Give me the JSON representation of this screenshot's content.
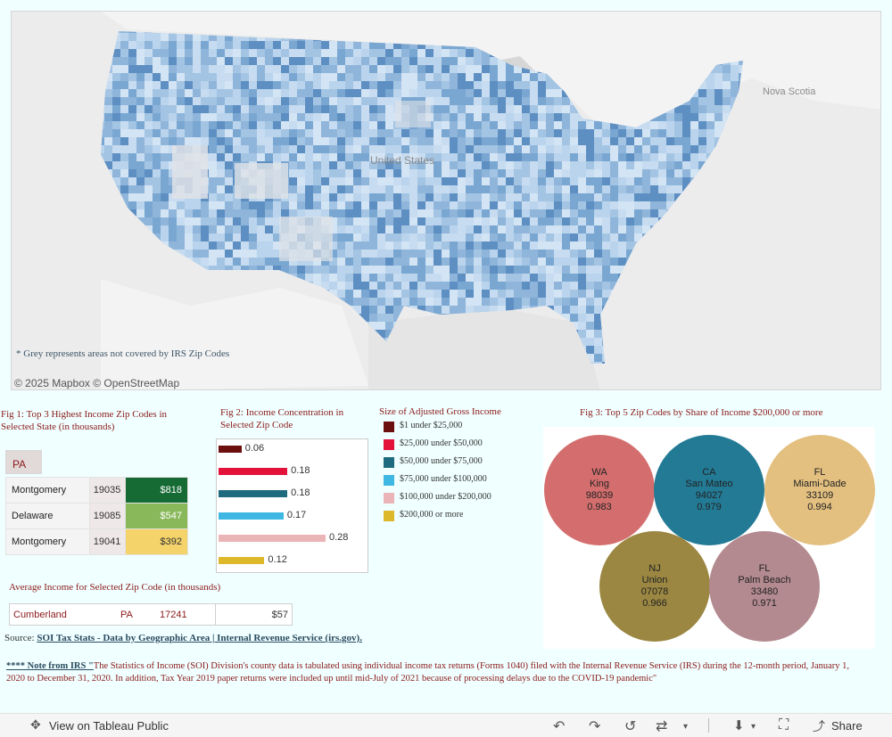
{
  "map": {
    "note": "* Grey represents areas  not covered by IRS Zip Codes",
    "attribution": "© 2025 Mapbox  © OpenStreetMap",
    "labels": [
      "Nova Scotia",
      "United States"
    ]
  },
  "fig1": {
    "title": "Fig 1: Top 3 Highest Income Zip Codes in Selected State (in thousands)",
    "state": "PA",
    "rows": [
      {
        "county": "Montgomery",
        "zip": "19035",
        "value": "$818",
        "color": "#166b34"
      },
      {
        "county": "Delaware",
        "zip": "19085",
        "value": "$547",
        "color": "#88b85a"
      },
      {
        "county": "Montgomery",
        "zip": "19041",
        "value": "$392",
        "color": "#f4d36a"
      }
    ]
  },
  "fig2": {
    "title": "Fig 2: Income Concentration in Selected Zip Code",
    "chart_data": {
      "type": "bar",
      "orientation": "horizontal",
      "categories": [
        "$1 under $25,000",
        "$25,000 under $50,000",
        "$50,000 under $75,000",
        "$75,000 under $100,000",
        "$100,000 under $200,000",
        "$200,000 or more"
      ],
      "values": [
        0.06,
        0.18,
        0.18,
        0.17,
        0.28,
        0.12
      ],
      "value_labels": [
        "0.06",
        "0.18",
        "0.18",
        "0.17",
        "0.28",
        "0.12"
      ],
      "xlim": [
        0,
        0.35
      ],
      "colors": [
        "#6b0f0f",
        "#e2123a",
        "#1e6a7e",
        "#3fb7e3",
        "#ebb4b6",
        "#ddb82a"
      ]
    }
  },
  "legend": {
    "title": "Size of Adjusted Gross Income",
    "items": [
      {
        "label": "$1 under $25,000",
        "color": "#6b0f0f"
      },
      {
        "label": "$25,000 under $50,000",
        "color": "#e2123a"
      },
      {
        "label": "$50,000 under $75,000",
        "color": "#1e6a7e"
      },
      {
        "label": "$75,000 under $100,000",
        "color": "#3fb7e3"
      },
      {
        "label": "$100,000 under $200,000",
        "color": "#ebb4b6"
      },
      {
        "label": "$200,000 or more",
        "color": "#ddb82a"
      }
    ]
  },
  "fig3": {
    "title": "Fig 3: Top 5  Zip Codes by Share of Income $200,000 or more",
    "bubbles": [
      {
        "state": "WA",
        "county": "King",
        "zip": "98039",
        "share": "0.983",
        "color": "#d46e6e"
      },
      {
        "state": "CA",
        "county": "San Mateo",
        "zip": "94027",
        "share": "0.979",
        "color": "#237a95"
      },
      {
        "state": "FL",
        "county": "Miami-Dade",
        "zip": "33109",
        "share": "0.994",
        "color": "#e3c080"
      },
      {
        "state": "NJ",
        "county": "Union",
        "zip": "07078",
        "share": "0.966",
        "color": "#9b8742"
      },
      {
        "state": "FL",
        "county": "Palm Beach",
        "zip": "33480",
        "share": "0.971",
        "color": "#b38a8f"
      }
    ]
  },
  "avg": {
    "title": "Average Income for Selected Zip Code (in thousands)",
    "county": "Cumberland",
    "state": "PA",
    "zip": "17241",
    "value": "$57"
  },
  "source": {
    "label": "Source:",
    "link": "SOI Tax Stats - Data by Geographic Area | Internal Revenue Service (irs.gov). "
  },
  "note": {
    "prefix": "**** Note from IRS \"",
    "text": "The Statistics of Income (SOI) Division's county data is tabulated using individual income tax returns (Forms 1040) filed with the Internal Revenue Service (IRS) during the 12-month period, January 1, 2020 to December 31, 2020. In addition, Tax Year 2019 paper returns were included up until mid-July of 2021 because of processing delays due to the COVID-19 pandemic\""
  },
  "toolbar": {
    "view_label": "View on Tableau Public",
    "share_label": "Share"
  }
}
